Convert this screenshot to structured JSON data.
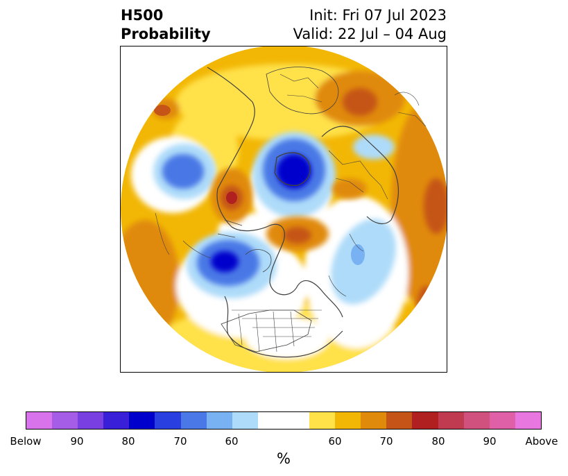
{
  "title": {
    "left_line1": "H500",
    "left_line2": "Probability",
    "right_line1": "Init: Fri 07 Jul 2023",
    "right_line2": "Valid: 22 Jul – 04 Aug"
  },
  "map": {
    "projection": "north-polar-stereographic",
    "colors": {
      "land_outline": "#404040",
      "below_60": "#aedbf9",
      "below_70": "#4a78e6",
      "below_80": "#0000cc",
      "above_60": "#ffe14a",
      "above_65": "#f2b705",
      "above_70": "#e08a0b",
      "above_75": "#c55418",
      "above_80": "#b02020"
    }
  },
  "colorbar": {
    "colors": [
      "#d873eb",
      "#a55ce6",
      "#7a3fe0",
      "#3a1fd8",
      "#0000cc",
      "#2a3fe0",
      "#4a78e6",
      "#78b2f2",
      "#aedbf9",
      "#ffffff",
      "#ffffff",
      "#ffe14a",
      "#f2b705",
      "#e08a0b",
      "#c55418",
      "#b02020",
      "#c03a50",
      "#d0507e",
      "#e060a8",
      "#e878e0"
    ],
    "ticks": [
      "Below",
      "90",
      "80",
      "70",
      "60",
      "60",
      "70",
      "80",
      "90",
      "Above"
    ],
    "unit_label": "%"
  }
}
